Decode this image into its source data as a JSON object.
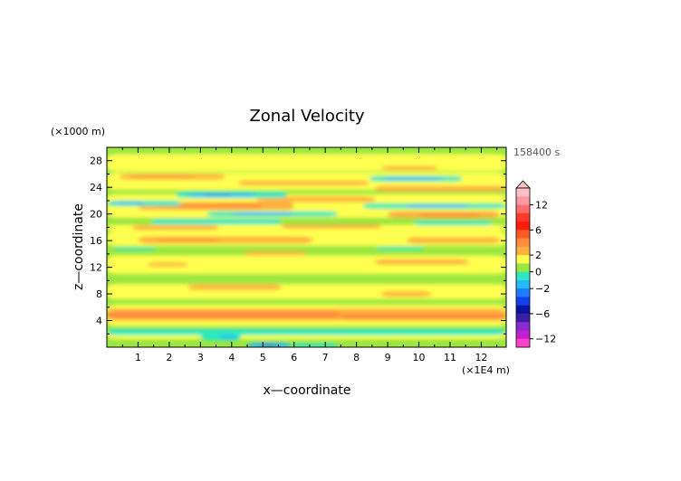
{
  "chart_data": {
    "type": "heatmap",
    "title": "Zonal Velocity",
    "xlabel": "x—coordinate",
    "ylabel": "z—coordinate",
    "x_unit": "(×1E4 m)",
    "y_unit": "(×1000 m)",
    "time_label": "158400 s",
    "xlim": [
      0,
      12.8
    ],
    "ylim": [
      0,
      30
    ],
    "x_ticks": [
      1,
      2,
      3,
      4,
      5,
      6,
      7,
      8,
      9,
      10,
      11,
      12
    ],
    "y_ticks": [
      4,
      8,
      12,
      16,
      20,
      24,
      28
    ],
    "background_color": "#9be640",
    "colorbar": {
      "ticks": [
        "12",
        "6",
        "2",
        "0",
        "−2",
        "−6",
        "−12"
      ],
      "levels": [
        {
          "value": 14,
          "color": "#ffc0c8"
        },
        {
          "value": 12,
          "color": "#ff9aa5"
        },
        {
          "value": 10,
          "color": "#ff6e6e"
        },
        {
          "value": 8,
          "color": "#ff3a2a"
        },
        {
          "value": 6,
          "color": "#ff1a10"
        },
        {
          "value": 4,
          "color": "#ff5a28"
        },
        {
          "value": 3,
          "color": "#ff8c3c"
        },
        {
          "value": 2,
          "color": "#ffb040"
        },
        {
          "value": 1,
          "color": "#ffff50"
        },
        {
          "value": 0,
          "color": "#9be640"
        },
        {
          "value": -1,
          "color": "#2ee8c0"
        },
        {
          "value": -2,
          "color": "#28b8ff"
        },
        {
          "value": -3,
          "color": "#1e7cff"
        },
        {
          "value": -4,
          "color": "#1440f0"
        },
        {
          "value": -6,
          "color": "#0a14a0"
        },
        {
          "value": -8,
          "color": "#3c1ea0"
        },
        {
          "value": -10,
          "color": "#8a2ad0"
        },
        {
          "value": -12,
          "color": "#c020d0"
        },
        {
          "value": -14,
          "color": "#ff40c8"
        }
      ]
    },
    "bands": [
      {
        "value": 1,
        "x0": 0,
        "x1": 12.8,
        "y0": 1.2,
        "y1": 2.3
      },
      {
        "value": -1,
        "x0": 0,
        "x1": 12.8,
        "y0": 1.8,
        "y1": 2.8
      },
      {
        "value": 1,
        "x0": 0,
        "x1": 12.8,
        "y0": 3.2,
        "y1": 6.4
      },
      {
        "value": 2,
        "x0": 0,
        "x1": 12.8,
        "y0": 4.0,
        "y1": 5.8
      },
      {
        "value": 3,
        "x0": 0,
        "x1": 7.5,
        "y0": 4.3,
        "y1": 5.4
      },
      {
        "value": 3,
        "x0": 7.5,
        "x1": 12.8,
        "y0": 4.1,
        "y1": 5.0
      },
      {
        "value": -1,
        "x0": 3.0,
        "x1": 4.3,
        "y0": 1.0,
        "y1": 2.0
      },
      {
        "value": -2,
        "x0": 3.6,
        "x1": 4.2,
        "y0": 1.3,
        "y1": 1.8
      },
      {
        "value": -2,
        "x0": 4.5,
        "x1": 5.9,
        "y0": 0.0,
        "y1": 0.7
      },
      {
        "value": -3,
        "x0": 4.9,
        "x1": 5.5,
        "y0": 0.0,
        "y1": 0.4
      },
      {
        "value": -1,
        "x0": 5.9,
        "x1": 7.4,
        "y0": 0.0,
        "y1": 0.6
      },
      {
        "value": 1,
        "x0": 0,
        "x1": 12.8,
        "y0": 7.2,
        "y1": 9.5
      },
      {
        "value": 2,
        "x0": 2.6,
        "x1": 5.6,
        "y0": 8.6,
        "y1": 9.4
      },
      {
        "value": 2,
        "x0": 8.8,
        "x1": 10.4,
        "y0": 7.6,
        "y1": 8.4
      },
      {
        "value": 1,
        "x0": 0,
        "x1": 12.8,
        "y0": 11.0,
        "y1": 13.8
      },
      {
        "value": 2,
        "x0": 1.3,
        "x1": 2.6,
        "y0": 12.1,
        "y1": 12.7
      },
      {
        "value": 2,
        "x0": 8.6,
        "x1": 11.6,
        "y0": 12.4,
        "y1": 13.2
      },
      {
        "value": 2,
        "x0": 4.4,
        "x1": 6.4,
        "y0": 13.8,
        "y1": 14.4
      },
      {
        "value": -1,
        "x0": 0.2,
        "x1": 1.6,
        "y0": 14.5,
        "y1": 15.0
      },
      {
        "value": -1,
        "x0": 8.6,
        "x1": 10.2,
        "y0": 14.6,
        "y1": 15.1
      },
      {
        "value": 1,
        "x0": 0,
        "x1": 12.8,
        "y0": 15.2,
        "y1": 17.4
      },
      {
        "value": 2,
        "x0": 1.0,
        "x1": 6.6,
        "y0": 15.6,
        "y1": 16.6
      },
      {
        "value": 3,
        "x0": 1.6,
        "x1": 3.6,
        "y0": 15.9,
        "y1": 16.3
      },
      {
        "value": 2,
        "x0": 9.6,
        "x1": 12.6,
        "y0": 15.6,
        "y1": 16.5
      },
      {
        "value": 1,
        "x0": 0,
        "x1": 12.8,
        "y0": 17.4,
        "y1": 18.4
      },
      {
        "value": 2,
        "x0": 0.8,
        "x1": 3.6,
        "y0": 17.6,
        "y1": 18.3
      },
      {
        "value": 2,
        "x0": 5.6,
        "x1": 8.8,
        "y0": 17.8,
        "y1": 18.4
      },
      {
        "value": -1,
        "x0": 1.4,
        "x1": 5.6,
        "y0": 18.4,
        "y1": 19.3
      },
      {
        "value": -1,
        "x0": 9.8,
        "x1": 12.4,
        "y0": 18.3,
        "y1": 19.0
      },
      {
        "value": 1,
        "x0": 0,
        "x1": 12.8,
        "y0": 19.4,
        "y1": 23.0
      },
      {
        "value": 2,
        "x0": 1.0,
        "x1": 6.0,
        "y0": 20.6,
        "y1": 21.8
      },
      {
        "value": 3,
        "x0": 1.6,
        "x1": 5.0,
        "y0": 20.9,
        "y1": 21.5
      },
      {
        "value": 2,
        "x0": 9.0,
        "x1": 12.6,
        "y0": 19.4,
        "y1": 20.4
      },
      {
        "value": 3,
        "x0": 10.0,
        "x1": 12.0,
        "y0": 19.6,
        "y1": 20.1
      },
      {
        "value": -1,
        "x0": 0,
        "x1": 2.4,
        "y0": 21.2,
        "y1": 22.0
      },
      {
        "value": -2,
        "x0": 0.2,
        "x1": 1.2,
        "y0": 21.4,
        "y1": 21.8
      },
      {
        "value": -1,
        "x0": 3.2,
        "x1": 7.4,
        "y0": 19.6,
        "y1": 20.4
      },
      {
        "value": -2,
        "x0": 4.0,
        "x1": 6.0,
        "y0": 19.8,
        "y1": 20.2
      },
      {
        "value": -1,
        "x0": 8.2,
        "x1": 12.8,
        "y0": 20.8,
        "y1": 21.6
      },
      {
        "value": -2,
        "x0": 9.6,
        "x1": 11.6,
        "y0": 21.0,
        "y1": 21.4
      },
      {
        "value": 2,
        "x0": 4.8,
        "x1": 8.6,
        "y0": 21.8,
        "y1": 22.6
      },
      {
        "value": -1,
        "x0": 2.2,
        "x1": 5.8,
        "y0": 22.4,
        "y1": 23.4
      },
      {
        "value": -2,
        "x0": 2.6,
        "x1": 4.8,
        "y0": 22.6,
        "y1": 23.1
      },
      {
        "value": -3,
        "x0": 3.1,
        "x1": 4.0,
        "y0": 22.7,
        "y1": 23.0
      },
      {
        "value": 1,
        "x0": 0,
        "x1": 12.8,
        "y0": 23.6,
        "y1": 26.2
      },
      {
        "value": 2,
        "x0": 0.4,
        "x1": 3.8,
        "y0": 25.2,
        "y1": 26.0
      },
      {
        "value": 3,
        "x0": 0.8,
        "x1": 2.8,
        "y0": 25.4,
        "y1": 25.8
      },
      {
        "value": 2,
        "x0": 4.2,
        "x1": 8.4,
        "y0": 24.3,
        "y1": 25.0
      },
      {
        "value": 2,
        "x0": 8.6,
        "x1": 12.8,
        "y0": 23.4,
        "y1": 24.2
      },
      {
        "value": -1,
        "x0": 8.4,
        "x1": 11.4,
        "y0": 24.9,
        "y1": 25.7
      },
      {
        "value": -2,
        "x0": 8.8,
        "x1": 10.8,
        "y0": 25.1,
        "y1": 25.5
      },
      {
        "value": -1,
        "x0": 0,
        "x1": 1.2,
        "y0": 26.4,
        "y1": 27.0
      },
      {
        "value": 1,
        "x0": 0,
        "x1": 12.8,
        "y0": 26.4,
        "y1": 29.0
      },
      {
        "value": 2,
        "x0": 8.8,
        "x1": 10.6,
        "y0": 26.6,
        "y1": 27.2
      }
    ]
  }
}
